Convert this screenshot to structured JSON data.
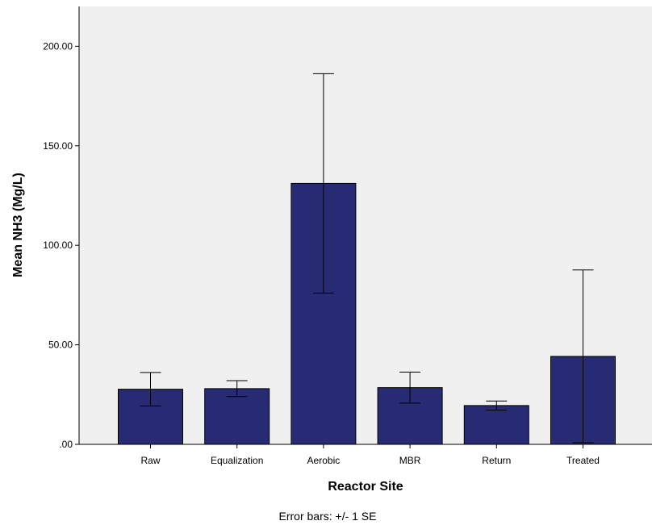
{
  "chart_data": {
    "type": "bar",
    "title": "",
    "xlabel": "Reactor Site",
    "ylabel": "Mean NH3 (Mg/L)",
    "categories": [
      "Raw",
      "Equalization",
      "Aerobic",
      "MBR",
      "Return",
      "Treated"
    ],
    "values": [
      27.7,
      28.0,
      131.1,
      28.5,
      19.5,
      44.2
    ],
    "error_low": [
      19.3,
      24.0,
      76.0,
      20.7,
      17.2,
      0.8
    ],
    "error_high": [
      36.1,
      32.0,
      186.2,
      36.3,
      21.8,
      87.6
    ],
    "ylim": [
      0,
      220
    ],
    "yticks": [
      0,
      50,
      100,
      150,
      200
    ],
    "ytick_labels": [
      ".00",
      "50.00",
      "100.00",
      "150.00",
      "200.00"
    ],
    "grid": false,
    "bar_color": "#272b73",
    "plot_background": "#f0f0f0",
    "footnote": "Error bars: +/- 1 SE"
  }
}
